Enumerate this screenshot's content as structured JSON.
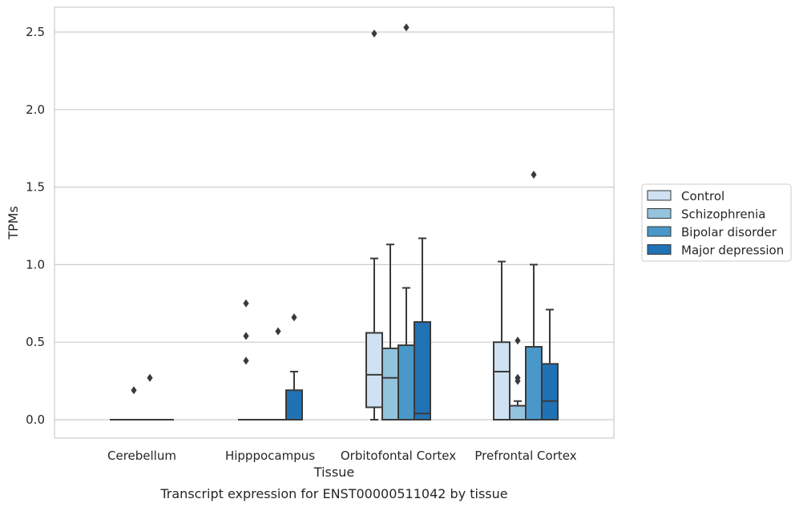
{
  "caption": "Transcript expression for ENST00000511042 by tissue",
  "chart_data": {
    "type": "box",
    "xlabel": "Tissue",
    "ylabel": "TPMs",
    "ylim": [
      -0.12,
      2.66
    ],
    "yticks": [
      0.0,
      0.5,
      1.0,
      1.5,
      2.0,
      2.5
    ],
    "ytick_labels": [
      "0.0",
      "0.5",
      "1.0",
      "1.5",
      "2.0",
      "2.5"
    ],
    "grid": "horizontal",
    "legend_position": "right",
    "categories": [
      "Cerebellum",
      "Hipppocampus",
      "Orbitofontal Cortex",
      "Prefrontal Cortex"
    ],
    "series": [
      {
        "name": "Control",
        "color": "#cfe1f2",
        "boxes": [
          {
            "whislo": 0,
            "q1": 0,
            "med": 0,
            "q3": 0,
            "whishi": 0,
            "fliers": []
          },
          {
            "whislo": 0,
            "q1": 0,
            "med": 0,
            "q3": 0,
            "whishi": 0,
            "fliers": [
              0.38,
              0.54,
              0.75
            ]
          },
          {
            "whislo": 0.0,
            "q1": 0.08,
            "med": 0.29,
            "q3": 0.56,
            "whishi": 1.04,
            "fliers": [
              2.49
            ]
          },
          {
            "whislo": 0.0,
            "q1": 0.0,
            "med": 0.31,
            "q3": 0.5,
            "whishi": 1.02,
            "fliers": []
          }
        ]
      },
      {
        "name": "Schizophrenia",
        "color": "#93c4de",
        "boxes": [
          {
            "whislo": 0,
            "q1": 0,
            "med": 0,
            "q3": 0,
            "whishi": 0,
            "fliers": [
              0.19
            ]
          },
          {
            "whislo": 0,
            "q1": 0,
            "med": 0,
            "q3": 0,
            "whishi": 0,
            "fliers": []
          },
          {
            "whislo": 0.0,
            "q1": 0.0,
            "med": 0.27,
            "q3": 0.46,
            "whishi": 1.13,
            "fliers": []
          },
          {
            "whislo": 0.0,
            "q1": 0.0,
            "med": 0.0,
            "q3": 0.09,
            "whishi": 0.12,
            "fliers": [
              0.25,
              0.27,
              0.51
            ]
          }
        ]
      },
      {
        "name": "Bipolar disorder",
        "color": "#4a98c9",
        "boxes": [
          {
            "whislo": 0,
            "q1": 0,
            "med": 0,
            "q3": 0,
            "whishi": 0,
            "fliers": [
              0.27
            ]
          },
          {
            "whislo": 0,
            "q1": 0,
            "med": 0,
            "q3": 0,
            "whishi": 0,
            "fliers": [
              0.57
            ]
          },
          {
            "whislo": 0.0,
            "q1": 0.0,
            "med": 0.0,
            "q3": 0.48,
            "whishi": 0.85,
            "fliers": [
              2.53
            ]
          },
          {
            "whislo": 0.0,
            "q1": 0.0,
            "med": 0.0,
            "q3": 0.47,
            "whishi": 1.0,
            "fliers": [
              1.58
            ]
          }
        ]
      },
      {
        "name": "Major depression",
        "color": "#2171b5",
        "boxes": [
          {
            "whislo": 0,
            "q1": 0,
            "med": 0,
            "q3": 0,
            "whishi": 0,
            "fliers": []
          },
          {
            "whislo": 0,
            "q1": 0,
            "med": 0,
            "q3": 0.19,
            "whishi": 0.31,
            "fliers": [
              0.66
            ]
          },
          {
            "whislo": 0.0,
            "q1": 0.0,
            "med": 0.04,
            "q3": 0.63,
            "whishi": 1.17,
            "fliers": []
          },
          {
            "whislo": 0.0,
            "q1": 0.0,
            "med": 0.12,
            "q3": 0.36,
            "whishi": 0.71,
            "fliers": []
          }
        ]
      }
    ]
  }
}
